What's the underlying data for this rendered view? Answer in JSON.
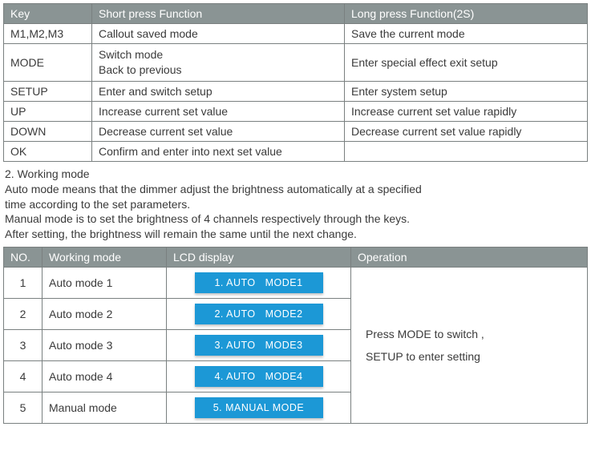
{
  "colors": {
    "header_bg": "#8a9494",
    "header_fg": "#ffffff",
    "border": "#7a8080",
    "lcd_bg": "#1c98d6",
    "lcd_fg": "#ffffff",
    "text": "#3a3a3a"
  },
  "fonts": {
    "body_size_pt": 10.5,
    "lcd_size_pt": 9.5,
    "family": "Arial"
  },
  "table1": {
    "headers": {
      "key": "Key",
      "short": "Short press  Function",
      "long": "Long press Function(2S)"
    },
    "rows": [
      {
        "key": "M1,M2,M3",
        "short": "Callout saved mode",
        "long": "Save the current mode"
      },
      {
        "key": "MODE",
        "short_line1": "Switch mode",
        "short_line2": "Back to previous",
        "long": "Enter special effect exit setup"
      },
      {
        "key": "SETUP",
        "short": "Enter and switch setup",
        "long": "Enter system setup"
      },
      {
        "key": "UP",
        "short": "Increase  current set value",
        "long": "Increase current set value rapidly"
      },
      {
        "key": "DOWN",
        "short": "Decrease  current set value",
        "long": "Decrease current set value rapidly"
      },
      {
        "key": "OK",
        "short": "Confirm and enter into next set value",
        "long": ""
      }
    ]
  },
  "section": {
    "heading": "2. Working mode",
    "line1": "Auto mode means that the dimmer adjust the brightness automatically at a specified",
    "line2": "time according to the set parameters.",
    "line3": "Manual mode is to set the brightness of 4 channels respectively through the keys.",
    "line4": "After setting, the brightness will remain the same  until the next change."
  },
  "table2": {
    "headers": {
      "no": "NO.",
      "mode": "Working mode",
      "lcd": "LCD display",
      "op": "Operation"
    },
    "rows": [
      {
        "no": "1",
        "mode": "Auto mode 1",
        "lcd": "1. AUTO   MODE1"
      },
      {
        "no": "2",
        "mode": "Auto mode 2",
        "lcd": "2. AUTO   MODE2"
      },
      {
        "no": "3",
        "mode": "Auto mode 3",
        "lcd": "3. AUTO   MODE3"
      },
      {
        "no": "4",
        "mode": "Auto mode 4",
        "lcd": "4. AUTO   MODE4"
      },
      {
        "no": "5",
        "mode": "Manual mode",
        "lcd": "5. MANUAL MODE"
      }
    ],
    "operation_line1": "Press MODE to switch ,",
    "operation_line2": "SETUP to enter setting"
  }
}
